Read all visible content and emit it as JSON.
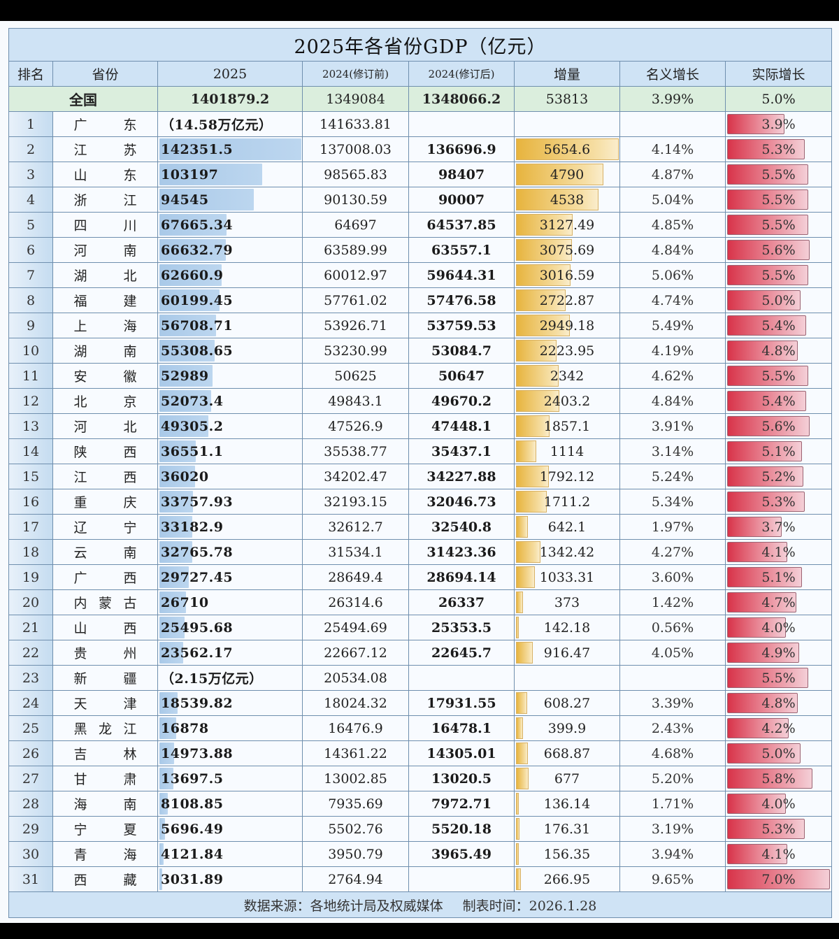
{
  "title": "2025年各省份GDP（亿元）",
  "headers": {
    "rank": "排名",
    "province": "省份",
    "y2025": "2025",
    "y2024_pre": "2024(修订前)",
    "y2024_post": "2024(修订后)",
    "increase": "增量",
    "nominal": "名义增长",
    "real": "实际增长"
  },
  "national": {
    "label": "全国",
    "y2025": "1401879.2",
    "y2024_pre": "1349084",
    "y2024_post": "1348066.2",
    "increase": "53813",
    "nominal": "3.99%",
    "real": "5.0%"
  },
  "rows": [
    {
      "rank": "1",
      "p1": "广",
      "p2": "",
      "p3": "东",
      "y2025": "（14.58万亿元）",
      "v2025": 0,
      "pre": "141633.81",
      "post": "",
      "inc": "",
      "incv": 0,
      "nom": "",
      "real": "3.9%",
      "realv": 3.9
    },
    {
      "rank": "2",
      "p1": "江",
      "p2": "",
      "p3": "苏",
      "y2025": "142351.5",
      "v2025": 142351.5,
      "pre": "137008.03",
      "post": "136696.9",
      "inc": "5654.6",
      "incv": 5654.6,
      "nom": "4.14%",
      "real": "5.3%",
      "realv": 5.3
    },
    {
      "rank": "3",
      "p1": "山",
      "p2": "",
      "p3": "东",
      "y2025": "103197",
      "v2025": 103197,
      "pre": "98565.83",
      "post": "98407",
      "inc": "4790",
      "incv": 4790,
      "nom": "4.87%",
      "real": "5.5%",
      "realv": 5.5
    },
    {
      "rank": "4",
      "p1": "浙",
      "p2": "",
      "p3": "江",
      "y2025": "94545",
      "v2025": 94545,
      "pre": "90130.59",
      "post": "90007",
      "inc": "4538",
      "incv": 4538,
      "nom": "5.04%",
      "real": "5.5%",
      "realv": 5.5
    },
    {
      "rank": "5",
      "p1": "四",
      "p2": "",
      "p3": "川",
      "y2025": "67665.34",
      "v2025": 67665.34,
      "pre": "64697",
      "post": "64537.85",
      "inc": "3127.49",
      "incv": 3127.49,
      "nom": "4.85%",
      "real": "5.5%",
      "realv": 5.5
    },
    {
      "rank": "6",
      "p1": "河",
      "p2": "",
      "p3": "南",
      "y2025": "66632.79",
      "v2025": 66632.79,
      "pre": "63589.99",
      "post": "63557.1",
      "inc": "3075.69",
      "incv": 3075.69,
      "nom": "4.84%",
      "real": "5.6%",
      "realv": 5.6
    },
    {
      "rank": "7",
      "p1": "湖",
      "p2": "",
      "p3": "北",
      "y2025": "62660.9",
      "v2025": 62660.9,
      "pre": "60012.97",
      "post": "59644.31",
      "inc": "3016.59",
      "incv": 3016.59,
      "nom": "5.06%",
      "real": "5.5%",
      "realv": 5.5
    },
    {
      "rank": "8",
      "p1": "福",
      "p2": "",
      "p3": "建",
      "y2025": "60199.45",
      "v2025": 60199.45,
      "pre": "57761.02",
      "post": "57476.58",
      "inc": "2722.87",
      "incv": 2722.87,
      "nom": "4.74%",
      "real": "5.0%",
      "realv": 5.0
    },
    {
      "rank": "9",
      "p1": "上",
      "p2": "",
      "p3": "海",
      "y2025": "56708.71",
      "v2025": 56708.71,
      "pre": "53926.71",
      "post": "53759.53",
      "inc": "2949.18",
      "incv": 2949.18,
      "nom": "5.49%",
      "real": "5.4%",
      "realv": 5.4
    },
    {
      "rank": "10",
      "p1": "湖",
      "p2": "",
      "p3": "南",
      "y2025": "55308.65",
      "v2025": 55308.65,
      "pre": "53230.99",
      "post": "53084.7",
      "inc": "2223.95",
      "incv": 2223.95,
      "nom": "4.19%",
      "real": "4.8%",
      "realv": 4.8
    },
    {
      "rank": "11",
      "p1": "安",
      "p2": "",
      "p3": "徽",
      "y2025": "52989",
      "v2025": 52989,
      "pre": "50625",
      "post": "50647",
      "inc": "2342",
      "incv": 2342,
      "nom": "4.62%",
      "real": "5.5%",
      "realv": 5.5
    },
    {
      "rank": "12",
      "p1": "北",
      "p2": "",
      "p3": "京",
      "y2025": "52073.4",
      "v2025": 52073.4,
      "pre": "49843.1",
      "post": "49670.2",
      "inc": "2403.2",
      "incv": 2403.2,
      "nom": "4.84%",
      "real": "5.4%",
      "realv": 5.4
    },
    {
      "rank": "13",
      "p1": "河",
      "p2": "",
      "p3": "北",
      "y2025": "49305.2",
      "v2025": 49305.2,
      "pre": "47526.9",
      "post": "47448.1",
      "inc": "1857.1",
      "incv": 1857.1,
      "nom": "3.91%",
      "real": "5.6%",
      "realv": 5.6
    },
    {
      "rank": "14",
      "p1": "陕",
      "p2": "",
      "p3": "西",
      "y2025": "36551.1",
      "v2025": 36551.1,
      "pre": "35538.77",
      "post": "35437.1",
      "inc": "1114",
      "incv": 1114,
      "nom": "3.14%",
      "real": "5.1%",
      "realv": 5.1
    },
    {
      "rank": "15",
      "p1": "江",
      "p2": "",
      "p3": "西",
      "y2025": "36020",
      "v2025": 36020,
      "pre": "34202.47",
      "post": "34227.88",
      "inc": "1792.12",
      "incv": 1792.12,
      "nom": "5.24%",
      "real": "5.2%",
      "realv": 5.2
    },
    {
      "rank": "16",
      "p1": "重",
      "p2": "",
      "p3": "庆",
      "y2025": "33757.93",
      "v2025": 33757.93,
      "pre": "32193.15",
      "post": "32046.73",
      "inc": "1711.2",
      "incv": 1711.2,
      "nom": "5.34%",
      "real": "5.3%",
      "realv": 5.3
    },
    {
      "rank": "17",
      "p1": "辽",
      "p2": "",
      "p3": "宁",
      "y2025": "33182.9",
      "v2025": 33182.9,
      "pre": "32612.7",
      "post": "32540.8",
      "inc": "642.1",
      "incv": 642.1,
      "nom": "1.97%",
      "real": "3.7%",
      "realv": 3.7
    },
    {
      "rank": "18",
      "p1": "云",
      "p2": "",
      "p3": "南",
      "y2025": "32765.78",
      "v2025": 32765.78,
      "pre": "31534.1",
      "post": "31423.36",
      "inc": "1342.42",
      "incv": 1342.42,
      "nom": "4.27%",
      "real": "4.1%",
      "realv": 4.1
    },
    {
      "rank": "19",
      "p1": "广",
      "p2": "",
      "p3": "西",
      "y2025": "29727.45",
      "v2025": 29727.45,
      "pre": "28649.4",
      "post": "28694.14",
      "inc": "1033.31",
      "incv": 1033.31,
      "nom": "3.60%",
      "real": "5.1%",
      "realv": 5.1
    },
    {
      "rank": "20",
      "p1": "内",
      "p2": "蒙",
      "p3": "古",
      "y2025": "26710",
      "v2025": 26710,
      "pre": "26314.6",
      "post": "26337",
      "inc": "373",
      "incv": 373,
      "nom": "1.42%",
      "real": "4.7%",
      "realv": 4.7
    },
    {
      "rank": "21",
      "p1": "山",
      "p2": "",
      "p3": "西",
      "y2025": "25495.68",
      "v2025": 25495.68,
      "pre": "25494.69",
      "post": "25353.5",
      "inc": "142.18",
      "incv": 142.18,
      "nom": "0.56%",
      "real": "4.0%",
      "realv": 4.0
    },
    {
      "rank": "22",
      "p1": "贵",
      "p2": "",
      "p3": "州",
      "y2025": "23562.17",
      "v2025": 23562.17,
      "pre": "22667.12",
      "post": "22645.7",
      "inc": "916.47",
      "incv": 916.47,
      "nom": "4.05%",
      "real": "4.9%",
      "realv": 4.9
    },
    {
      "rank": "23",
      "p1": "新",
      "p2": "",
      "p3": "疆",
      "y2025": "（2.15万亿元）",
      "v2025": 0,
      "pre": "20534.08",
      "post": "",
      "inc": "",
      "incv": 0,
      "nom": "",
      "real": "5.5%",
      "realv": 5.5
    },
    {
      "rank": "24",
      "p1": "天",
      "p2": "",
      "p3": "津",
      "y2025": "18539.82",
      "v2025": 18539.82,
      "pre": "18024.32",
      "post": "17931.55",
      "inc": "608.27",
      "incv": 608.27,
      "nom": "3.39%",
      "real": "4.8%",
      "realv": 4.8
    },
    {
      "rank": "25",
      "p1": "黑",
      "p2": "龙",
      "p3": "江",
      "y2025": "16878",
      "v2025": 16878,
      "pre": "16476.9",
      "post": "16478.1",
      "inc": "399.9",
      "incv": 399.9,
      "nom": "2.43%",
      "real": "4.2%",
      "realv": 4.2
    },
    {
      "rank": "26",
      "p1": "吉",
      "p2": "",
      "p3": "林",
      "y2025": "14973.88",
      "v2025": 14973.88,
      "pre": "14361.22",
      "post": "14305.01",
      "inc": "668.87",
      "incv": 668.87,
      "nom": "4.68%",
      "real": "5.0%",
      "realv": 5.0
    },
    {
      "rank": "27",
      "p1": "甘",
      "p2": "",
      "p3": "肃",
      "y2025": "13697.5",
      "v2025": 13697.5,
      "pre": "13002.85",
      "post": "13020.5",
      "inc": "677",
      "incv": 677,
      "nom": "5.20%",
      "real": "5.8%",
      "realv": 5.8
    },
    {
      "rank": "28",
      "p1": "海",
      "p2": "",
      "p3": "南",
      "y2025": "8108.85",
      "v2025": 8108.85,
      "pre": "7935.69",
      "post": "7972.71",
      "inc": "136.14",
      "incv": 136.14,
      "nom": "1.71%",
      "real": "4.0%",
      "realv": 4.0
    },
    {
      "rank": "29",
      "p1": "宁",
      "p2": "",
      "p3": "夏",
      "y2025": "5696.49",
      "v2025": 5696.49,
      "pre": "5502.76",
      "post": "5520.18",
      "inc": "176.31",
      "incv": 176.31,
      "nom": "3.19%",
      "real": "5.3%",
      "realv": 5.3
    },
    {
      "rank": "30",
      "p1": "青",
      "p2": "",
      "p3": "海",
      "y2025": "4121.84",
      "v2025": 4121.84,
      "pre": "3950.79",
      "post": "3965.49",
      "inc": "156.35",
      "incv": 156.35,
      "nom": "3.94%",
      "real": "4.1%",
      "realv": 4.1
    },
    {
      "rank": "31",
      "p1": "西",
      "p2": "",
      "p3": "藏",
      "y2025": "3031.89",
      "v2025": 3031.89,
      "pre": "2764.94",
      "post": "",
      "inc": "266.95",
      "incv": 266.95,
      "nom": "9.65%",
      "real": "7.0%",
      "realv": 7.0
    }
  ],
  "footer": {
    "source": "数据来源：各地统计局及权威媒体",
    "date": "制表时间：2026.1.28"
  },
  "colors": {
    "header_bg": "#cfe3f5",
    "national_bg": "#dbeedd",
    "bar_2025": "#a9c9e8",
    "bar_increase": "#e7b43e",
    "bar_real_growth": "#d8344a",
    "border": "#6f8fae"
  },
  "bar_scale": {
    "y2025_max": 142351.5,
    "increase_max": 5654.6,
    "real_max": 7.0
  }
}
